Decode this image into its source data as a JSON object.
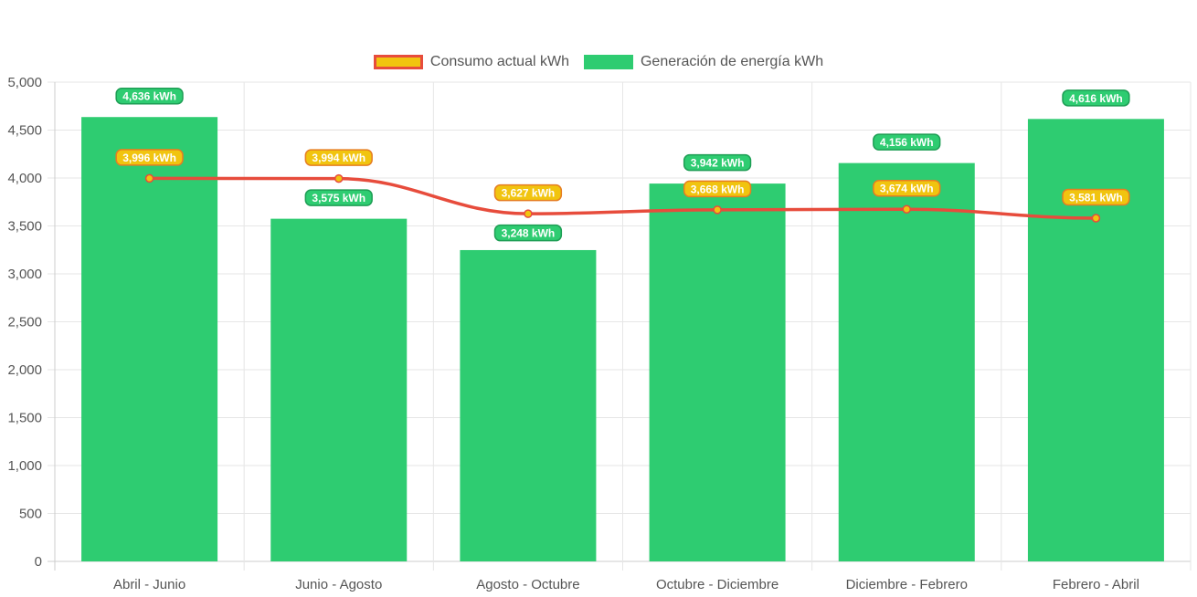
{
  "chart_data": {
    "type": "bar",
    "categories": [
      "Abril - Junio",
      "Junio - Agosto",
      "Agosto - Octubre",
      "Octubre - Diciembre",
      "Diciembre - Febrero",
      "Febrero - Abril"
    ],
    "series": [
      {
        "name": "Consumo actual kWh",
        "type": "line",
        "values": [
          3996,
          3994,
          3627,
          3668,
          3674,
          3581
        ],
        "labels": [
          "3,996 kWh",
          "3,994 kWh",
          "3,627 kWh",
          "3,668 kWh",
          "3,674 kWh",
          "3,581 kWh"
        ],
        "line_color": "#e74c3c",
        "fill_color": "#f1c40f"
      },
      {
        "name": "Generación de energía kWh",
        "type": "bar",
        "values": [
          4636,
          3575,
          3248,
          3942,
          4156,
          4616
        ],
        "labels": [
          "4,636 kWh",
          "3,575 kWh",
          "3,248 kWh",
          "3,942 kWh",
          "4,156 kWh",
          "4,616 kWh"
        ],
        "color": "#2ecc71"
      }
    ],
    "ylim": [
      0,
      5000
    ],
    "yticks": [
      "0",
      "500",
      "1,000",
      "1,500",
      "2,000",
      "2,500",
      "3,000",
      "3,500",
      "4,000",
      "4,500",
      "5,000"
    ],
    "grid": true,
    "legend": "top-center"
  }
}
